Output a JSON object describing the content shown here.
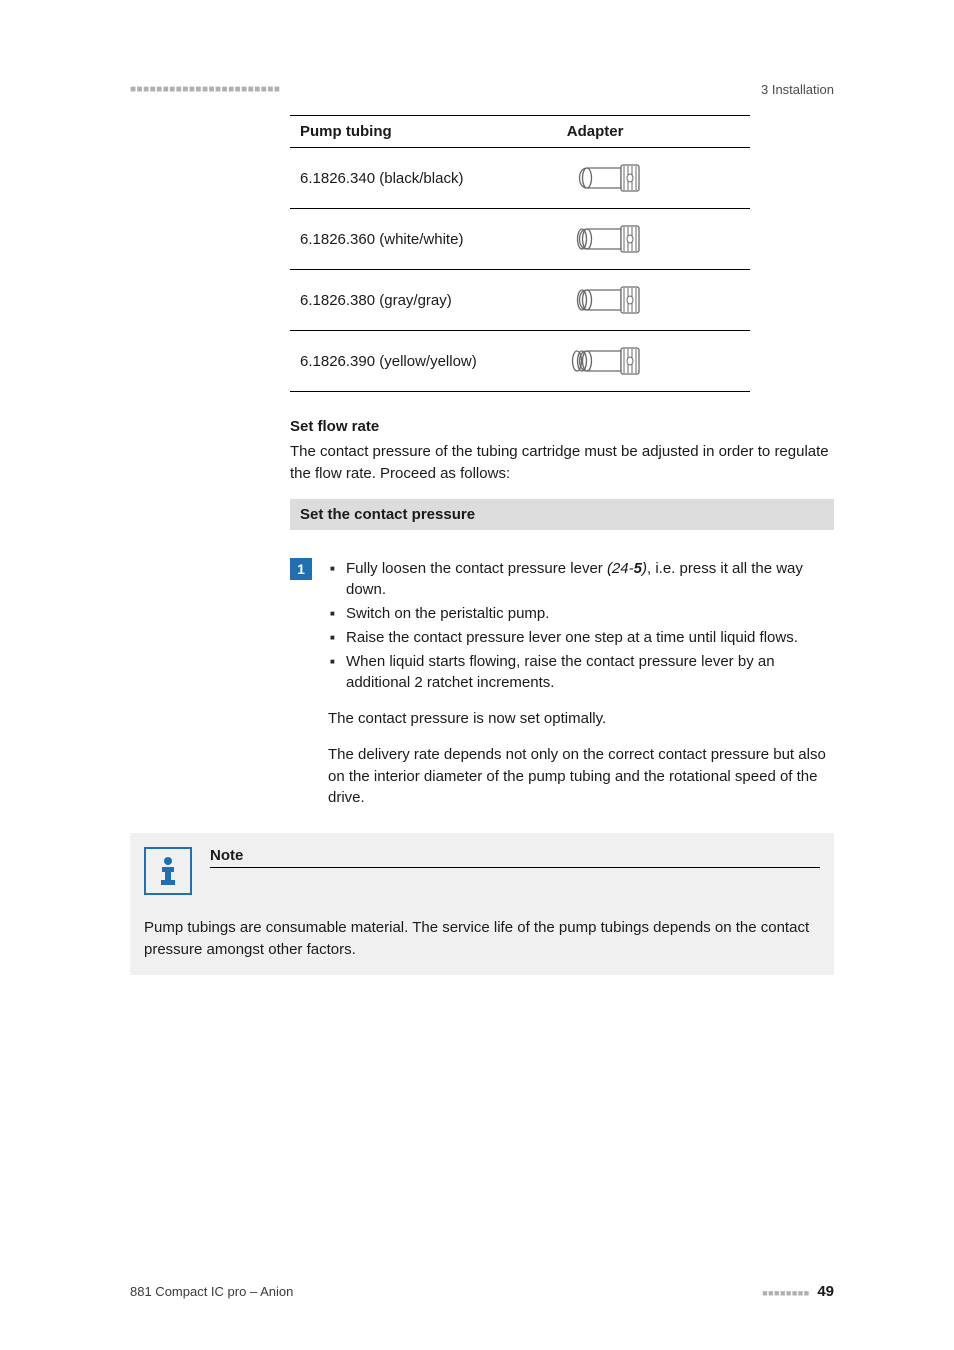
{
  "header": {
    "dots": "■■■■■■■■■■■■■■■■■■■■■■■",
    "right": "3 Installation"
  },
  "table": {
    "headers": {
      "pump": "Pump tubing",
      "adapter": "Adapter"
    },
    "rows": [
      {
        "label": "6.1826.340 (black/black)",
        "rings": 1
      },
      {
        "label": "6.1826.360 (white/white)",
        "rings": 2
      },
      {
        "label": "6.1826.380 (gray/gray)",
        "rings": 2
      },
      {
        "label": "6.1826.390 (yellow/yellow)",
        "rings": 3
      }
    ]
  },
  "sections": {
    "flow_title": "Set flow rate",
    "flow_text": "The contact pressure of the tubing cartridge must be adjusted in order to regulate the flow rate. Proceed as follows:",
    "greybar": "Set the contact pressure"
  },
  "step": {
    "num": "1",
    "bullets": [
      {
        "pre": "Fully loosen the contact pressure lever ",
        "ref_a": "(24-",
        "ref_b": "5",
        "ref_c": ")",
        "post": ", i.e. press it all the way down."
      },
      {
        "text": "Switch on the peristaltic pump."
      },
      {
        "text": "Raise the contact pressure lever one step at a time until liquid flows."
      },
      {
        "text": "When liquid starts flowing, raise the contact pressure lever by an additional 2 ratchet increments."
      }
    ],
    "p1": "The contact pressure is now set optimally.",
    "p2": "The delivery rate depends not only on the correct contact pressure but also on the interior diameter of the pump tubing and the rotational speed of the drive."
  },
  "note": {
    "title": "Note",
    "text": "Pump tubings are consumable material. The service life of the pump tubings depends on the contact pressure amongst other factors."
  },
  "footer": {
    "left": "881 Compact IC pro – Anion",
    "dots": "■■■■■■■■",
    "page": "49"
  },
  "style": {
    "accent": "#1f6fb2",
    "grey_bar": "#dcdcdc",
    "note_bg": "#f0f0f0",
    "text": "#1a1a1a",
    "adapter_outline": "#6a6a6a",
    "adapter_fill": "#ffffff"
  }
}
